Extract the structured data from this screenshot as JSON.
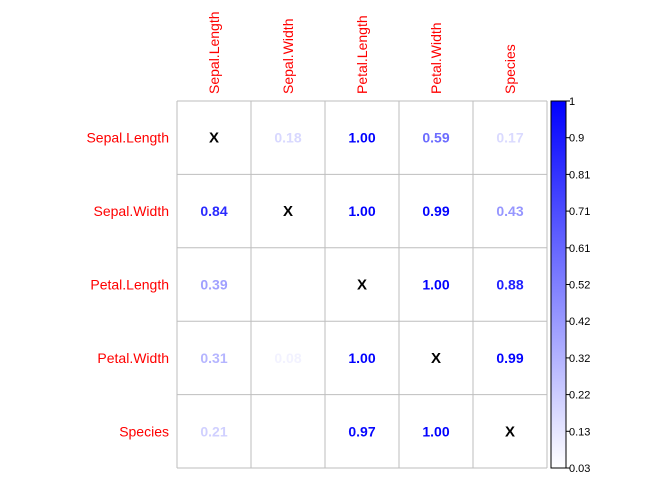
{
  "chart_data": {
    "type": "heatmap",
    "row_labels": [
      "Sepal.Length",
      "Sepal.Width",
      "Petal.Length",
      "Petal.Width",
      "Species"
    ],
    "col_labels": [
      "Sepal.Length",
      "Sepal.Width",
      "Petal.Length",
      "Petal.Width",
      "Species"
    ],
    "cells": [
      [
        "X",
        "0.18",
        "1.00",
        "0.59",
        "0.17"
      ],
      [
        "0.84",
        "X",
        "1.00",
        "0.99",
        "0.43"
      ],
      [
        "0.39",
        "",
        "X",
        "1.00",
        "0.88"
      ],
      [
        "0.31",
        "0.08",
        "1.00",
        "X",
        "0.99"
      ],
      [
        "0.21",
        "",
        "0.97",
        "1.00",
        "X"
      ]
    ],
    "colorbar": {
      "ticks": [
        "1",
        "0.9",
        "0.81",
        "0.71",
        "0.61",
        "0.52",
        "0.42",
        "0.32",
        "0.22",
        "0.13",
        "0.03"
      ],
      "min": 0.03,
      "max": 1,
      "low_color": "#ffffff",
      "high_color": "#0000ff"
    },
    "diagonal_marker": "X",
    "label_color": "#ff0000",
    "grid": true
  }
}
